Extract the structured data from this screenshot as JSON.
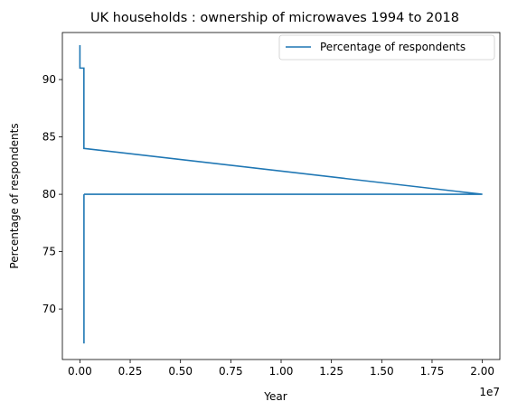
{
  "chart_data": {
    "type": "line",
    "title": "UK households : ownership of microwaves 1994 to 2018",
    "xlabel": "Year",
    "ylabel": "Percentage of respondents",
    "x_offset_text": "1e7",
    "x_scale": 10000000,
    "xlim": [
      -870000,
      20870000
    ],
    "ylim": [
      65.6,
      94.1
    ],
    "x_ticks": [
      0,
      2500000,
      5000000,
      7500000,
      10000000,
      12500000,
      15000000,
      17500000,
      20000000
    ],
    "x_tick_labels": [
      "0.00",
      "0.25",
      "0.50",
      "0.75",
      "1.00",
      "1.25",
      "1.50",
      "1.75",
      "2.00"
    ],
    "y_ticks": [
      70,
      75,
      80,
      85,
      90
    ],
    "y_tick_labels": [
      "70",
      "75",
      "80",
      "85",
      "90"
    ],
    "grid": false,
    "legend_position": "top-right",
    "color": "#1f77b4",
    "series": [
      {
        "name": "Percentage of respondents",
        "x": [
          1994,
          1995,
          1996,
          1997,
          1998,
          2000,
          2002,
          2004,
          2006,
          2008,
          2010,
          2012,
          2014,
          2016,
          2018,
          199500,
          200000,
          200500,
          201000,
          20000000,
          201500,
          202000,
          202500,
          203000
        ],
        "y": [
          92,
          93,
          92,
          92,
          92,
          92,
          92,
          92,
          92,
          92,
          92,
          92,
          92,
          92,
          91,
          91,
          91,
          84,
          84,
          80,
          80,
          80,
          80,
          67
        ]
      }
    ]
  }
}
